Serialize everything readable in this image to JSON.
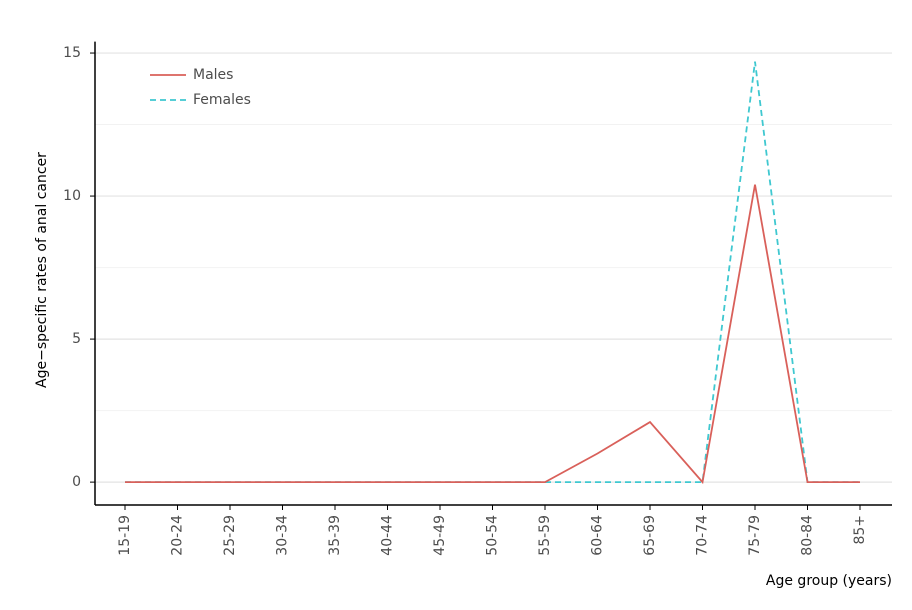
{
  "chart_data": {
    "type": "line",
    "x_label": "Age group (years)",
    "y_label": "Age−specific rates of anal cancer",
    "categories": [
      "15-19",
      "20-24",
      "25-29",
      "30-34",
      "35-39",
      "40-44",
      "45-49",
      "50-54",
      "55-59",
      "60-64",
      "65-69",
      "70-74",
      "75-79",
      "80-84",
      "85+"
    ],
    "series": [
      {
        "name": "Males",
        "color": "#d9605a",
        "dash": false,
        "values": [
          0,
          0,
          0,
          0,
          0,
          0,
          0,
          0,
          0,
          1.0,
          2.1,
          0,
          10.4,
          0,
          0
        ]
      },
      {
        "name": "Females",
        "color": "#3fc8d0",
        "dash": true,
        "values": [
          0,
          0,
          0,
          0,
          0,
          0,
          0,
          0,
          0,
          0,
          0,
          0,
          14.7,
          0,
          0
        ]
      }
    ],
    "ylim": [
      -0.8,
      15.4
    ],
    "yticks": [
      0,
      5,
      10,
      15
    ],
    "yminor": [
      2.5,
      7.5,
      12.5
    ],
    "grid": true,
    "legend": "top-left"
  }
}
